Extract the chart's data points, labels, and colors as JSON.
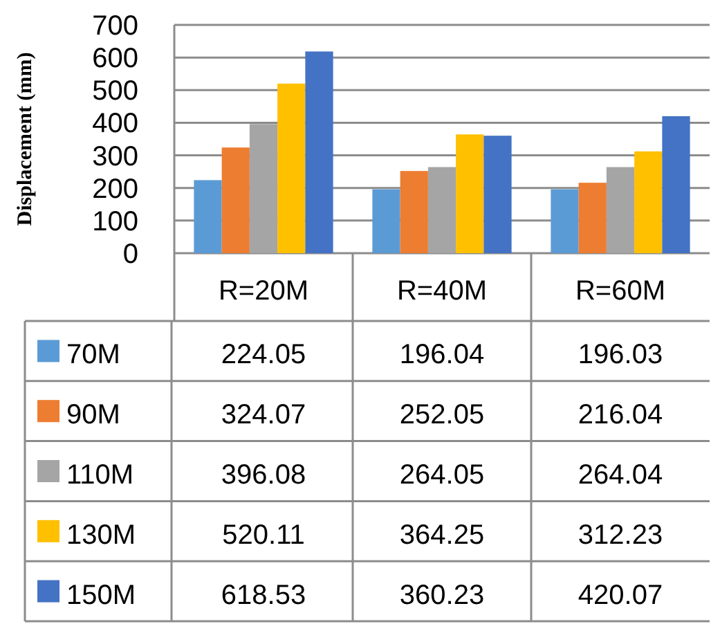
{
  "chart_data": {
    "type": "bar",
    "ylabel": "Displacement (mm)",
    "categories": [
      "R=20M",
      "R=40M",
      "R=60M"
    ],
    "series": [
      {
        "name": "70M",
        "color": "#5b9bd5",
        "values": [
          224.05,
          196.04,
          196.03
        ]
      },
      {
        "name": "90M",
        "color": "#ed7d31",
        "values": [
          324.07,
          252.05,
          216.04
        ]
      },
      {
        "name": "110M",
        "color": "#a5a5a5",
        "values": [
          396.08,
          264.05,
          264.04
        ]
      },
      {
        "name": "130M",
        "color": "#ffc000",
        "values": [
          520.11,
          364.25,
          312.23
        ]
      },
      {
        "name": "150M",
        "color": "#4472c4",
        "values": [
          618.53,
          360.23,
          420.07
        ]
      }
    ],
    "ylim": [
      0,
      700
    ],
    "yticks": [
      0,
      100,
      200,
      300,
      400,
      500,
      600,
      700
    ],
    "grid": "y",
    "legend": "bottom",
    "data_labels": true
  }
}
